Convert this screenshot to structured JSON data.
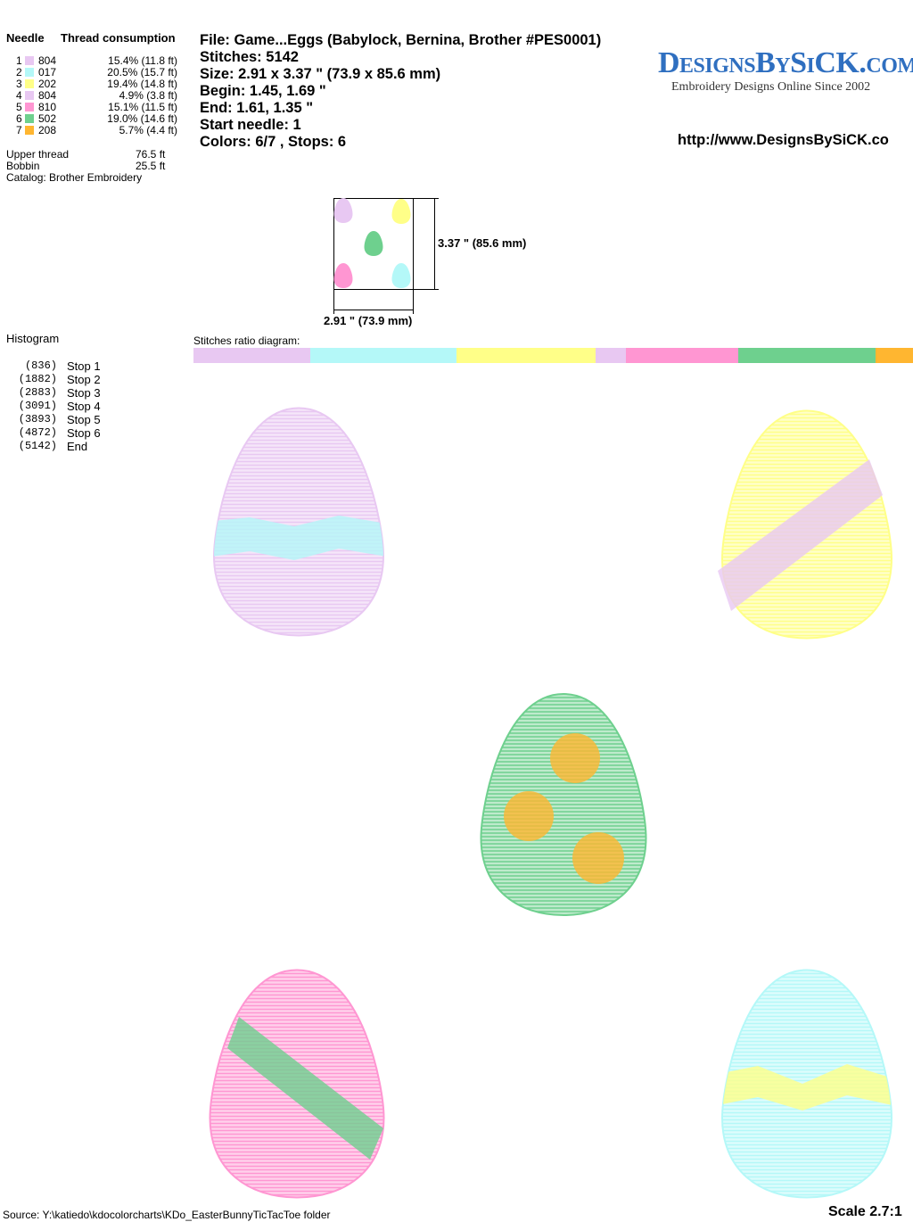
{
  "thread_table": {
    "headers": [
      "Needle",
      "Thread consumption"
    ],
    "rows": [
      {
        "needle": "1",
        "color": "#e8c8f2",
        "code": "804",
        "consumption": "15.4% (11.8 ft)"
      },
      {
        "needle": "2",
        "color": "#b4f8f8",
        "code": "017",
        "consumption": "20.5% (15.7 ft)"
      },
      {
        "needle": "3",
        "color": "#ffff88",
        "code": "202",
        "consumption": "19.4% (14.8 ft)"
      },
      {
        "needle": "4",
        "color": "#e8c8f2",
        "code": "804",
        "consumption": "4.9% (3.8 ft)"
      },
      {
        "needle": "5",
        "color": "#ff96d2",
        "code": "810",
        "consumption": "15.1% (11.5 ft)"
      },
      {
        "needle": "6",
        "color": "#6ed08e",
        "code": "502",
        "consumption": "19.0% (14.6 ft)"
      },
      {
        "needle": "7",
        "color": "#ffb630",
        "code": "208",
        "consumption": "5.7% (4.4 ft)"
      }
    ]
  },
  "totals": [
    {
      "label": "Upper thread",
      "value": "76.5 ft"
    },
    {
      "label": "Bobbin",
      "value": "25.5 ft"
    }
  ],
  "catalog": "Catalog: Brother Embroidery",
  "info": [
    "File: Game...Eggs  (Babylock, Bernina, Brother #PES0001)",
    "Stitches: 5142",
    "Size: 2.91 x 3.37 \" (73.9 x 85.6 mm)",
    "Begin: 1.45, 1.69 \"",
    "End: 1.61, 1.35 \"",
    "Start needle: 1",
    "Colors: 6/7 , Stops: 6"
  ],
  "logo": {
    "title": "DesignsBySiCK.com",
    "tagline": "Embroidery Designs Online Since 2002"
  },
  "url": "http://www.DesignsBySiCK.co",
  "preview": {
    "height": "3.37 \" (85.6 mm)",
    "width": "2.91 \" (73.9 mm)"
  },
  "histogram": {
    "title": "Histogram",
    "stops": [
      {
        "count": "(836)",
        "label": "Stop 1"
      },
      {
        "count": "(1882)",
        "label": "Stop 2"
      },
      {
        "count": "(2883)",
        "label": "Stop 3"
      },
      {
        "count": "(3091)",
        "label": "Stop 4"
      },
      {
        "count": "(3893)",
        "label": "Stop 5"
      },
      {
        "count": "(4872)",
        "label": "Stop 6"
      },
      {
        "count": "(5142)",
        "label": "End"
      }
    ]
  },
  "ratio_label": "Stitches ratio diagram:",
  "source": "Source: Y:\\katiedo\\kdocolorcharts\\KDo_EasterBunnyTicTacToe folder",
  "scale": "Scale 2.7:1"
}
